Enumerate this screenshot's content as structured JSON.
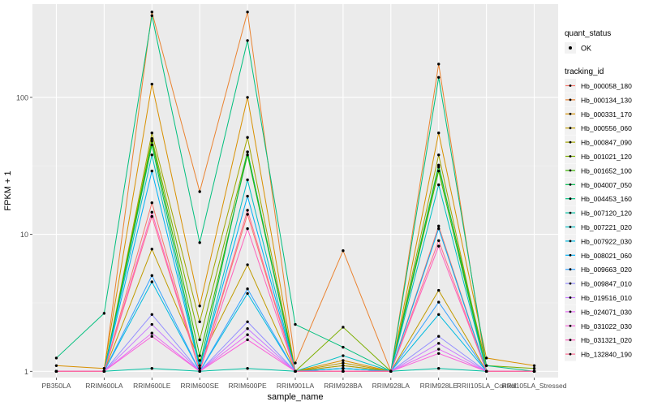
{
  "chart_data": {
    "type": "line",
    "xlabel": "sample_name",
    "ylabel": "FPKM + 1",
    "yscale": "log10",
    "ylim": [
      0.9,
      480
    ],
    "y_ticks": [
      1,
      10,
      100
    ],
    "y_tick_labels": [
      "1",
      "10",
      "100"
    ],
    "categories": [
      "PB350LA",
      "RRIM600LA",
      "RRIM600LE",
      "RRIM600SE",
      "RRIM600PE",
      "RRIM901LA",
      "RRIM928BA",
      "RRIM928LA",
      "RRIM928LE",
      "RRII105LA_Control",
      "RRII105LA_Stressed"
    ],
    "grid": true,
    "background": "#ebebeb",
    "gridline_color": "#ffffff",
    "point_color": "#000000",
    "legend_position": "right",
    "legend_quant": {
      "title": "quant_status",
      "items": [
        "OK"
      ]
    },
    "legend_title": "tracking_id",
    "series": [
      {
        "name": "Hb_000058_180",
        "color": "#F8766D",
        "values": [
          1.0,
          1.0,
          17.0,
          1.0,
          14.0,
          1.0,
          1.1,
          1.0,
          11.5,
          1.0,
          1.0
        ]
      },
      {
        "name": "Hb_000134_130",
        "color": "#EA8331",
        "values": [
          1.0,
          1.0,
          420.0,
          20.5,
          420.0,
          1.15,
          7.6,
          1.0,
          175.0,
          1.0,
          1.0
        ]
      },
      {
        "name": "Hb_000331_170",
        "color": "#D89000",
        "values": [
          1.1,
          1.05,
          125.0,
          3.0,
          100.0,
          1.0,
          1.2,
          1.0,
          55.0,
          1.25,
          1.1
        ]
      },
      {
        "name": "Hb_000556_060",
        "color": "#C09B00",
        "values": [
          1.0,
          1.0,
          7.8,
          1.2,
          6.0,
          1.0,
          1.15,
          1.0,
          3.9,
          1.0,
          1.0
        ]
      },
      {
        "name": "Hb_000847_090",
        "color": "#A3A500",
        "values": [
          1.0,
          1.0,
          55.0,
          2.3,
          51.0,
          1.0,
          1.1,
          1.0,
          38.0,
          1.0,
          1.0
        ]
      },
      {
        "name": "Hb_001021_120",
        "color": "#7CAE00",
        "values": [
          1.0,
          1.0,
          50.0,
          1.7,
          40.0,
          1.0,
          2.1,
          1.0,
          31.0,
          1.1,
          1.05
        ]
      },
      {
        "name": "Hb_001652_100",
        "color": "#39B600",
        "values": [
          1.0,
          1.0,
          48.0,
          1.3,
          38.0,
          1.0,
          1.05,
          1.0,
          29.0,
          1.0,
          1.0
        ]
      },
      {
        "name": "Hb_004007_050",
        "color": "#00BB4E",
        "values": [
          1.0,
          1.0,
          45.0,
          1.1,
          40.0,
          1.0,
          1.0,
          1.0,
          32.0,
          1.0,
          1.0
        ]
      },
      {
        "name": "Hb_004453_160",
        "color": "#00BF7D",
        "values": [
          1.25,
          2.65,
          395.0,
          8.7,
          260.0,
          2.2,
          1.5,
          1.0,
          140.0,
          1.1,
          1.0
        ]
      },
      {
        "name": "Hb_007120_120",
        "color": "#00C1A3",
        "values": [
          1.0,
          1.0,
          1.05,
          1.0,
          1.05,
          1.0,
          1.0,
          1.0,
          1.05,
          1.0,
          1.0
        ]
      },
      {
        "name": "Hb_007221_020",
        "color": "#00BFC4",
        "values": [
          1.0,
          1.0,
          38.0,
          1.05,
          25.0,
          1.0,
          1.3,
          1.0,
          23.0,
          1.0,
          1.0
        ]
      },
      {
        "name": "Hb_007922_030",
        "color": "#00BAE0",
        "values": [
          1.0,
          1.0,
          4.5,
          1.0,
          3.7,
          1.0,
          1.05,
          1.0,
          2.6,
          1.0,
          1.0
        ]
      },
      {
        "name": "Hb_008021_060",
        "color": "#00B0F6",
        "values": [
          1.0,
          1.0,
          29.0,
          1.05,
          19.0,
          1.0,
          1.05,
          1.0,
          11.0,
          1.0,
          1.0
        ]
      },
      {
        "name": "Hb_009663_020",
        "color": "#35A2FF",
        "values": [
          1.0,
          1.0,
          5.0,
          1.0,
          4.0,
          1.0,
          1.0,
          1.0,
          3.2,
          1.0,
          1.0
        ]
      },
      {
        "name": "Hb_009847_010",
        "color": "#9590FF",
        "values": [
          1.0,
          1.0,
          2.6,
          1.0,
          2.3,
          1.0,
          1.0,
          1.0,
          1.8,
          1.0,
          1.0
        ]
      },
      {
        "name": "Hb_019516_010",
        "color": "#C77CFF",
        "values": [
          1.0,
          1.0,
          2.2,
          1.0,
          2.05,
          1.0,
          1.0,
          1.0,
          1.6,
          1.0,
          1.0
        ]
      },
      {
        "name": "Hb_024071_030",
        "color": "#E76BF3",
        "values": [
          1.0,
          1.0,
          1.9,
          1.0,
          1.85,
          1.0,
          1.0,
          1.0,
          1.45,
          1.0,
          1.0
        ]
      },
      {
        "name": "Hb_031022_030",
        "color": "#FA62DB",
        "values": [
          1.0,
          1.0,
          1.8,
          1.0,
          1.7,
          1.0,
          1.0,
          1.0,
          1.35,
          1.0,
          1.0
        ]
      },
      {
        "name": "Hb_031321_020",
        "color": "#FF62BC",
        "values": [
          1.0,
          1.0,
          14.5,
          1.0,
          11.0,
          1.0,
          1.0,
          1.0,
          8.2,
          1.0,
          1.0
        ]
      },
      {
        "name": "Hb_132840_190",
        "color": "#FF6C91",
        "values": [
          1.0,
          1.0,
          13.5,
          1.0,
          15.0,
          1.0,
          1.0,
          1.0,
          9.0,
          1.0,
          1.0
        ]
      }
    ]
  }
}
